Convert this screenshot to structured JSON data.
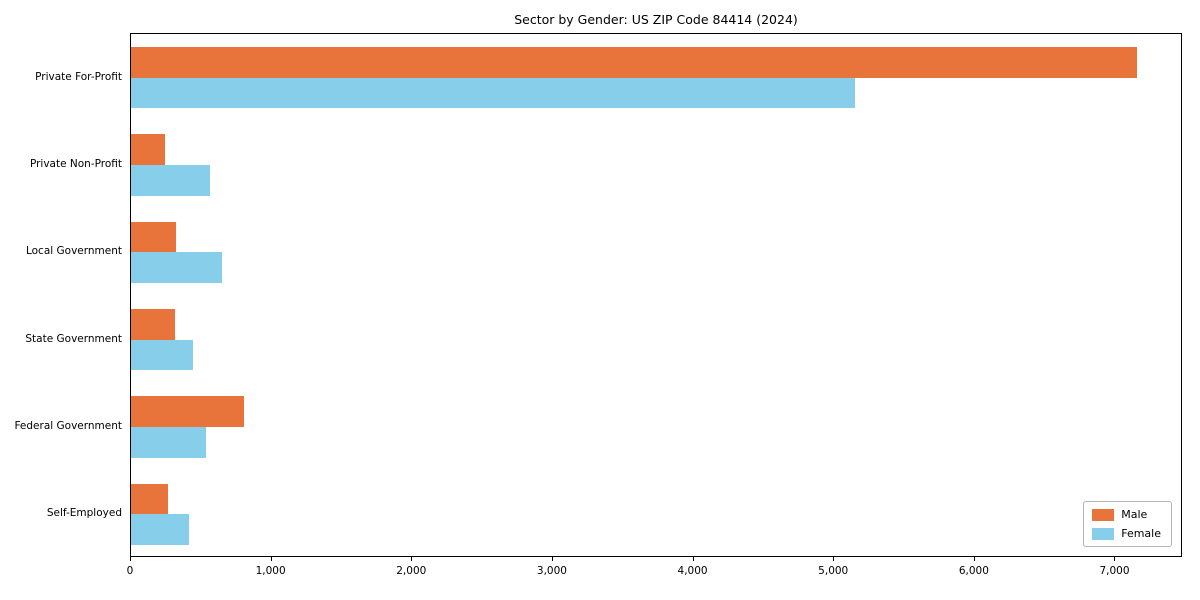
{
  "chart_data": {
    "type": "bar",
    "orientation": "horizontal",
    "title": "Sector by Gender: US ZIP Code 84414 (2024)",
    "categories": [
      "Private For-Profit",
      "Private Non-Profit",
      "Local Government",
      "State Government",
      "Federal Government",
      "Self-Employed"
    ],
    "series": [
      {
        "name": "Male",
        "color": "#e8743b",
        "values": [
          7150,
          240,
          320,
          310,
          800,
          260
        ]
      },
      {
        "name": "Female",
        "color": "#87ceeb",
        "values": [
          5150,
          560,
          650,
          440,
          530,
          410
        ]
      }
    ],
    "xlim": [
      0,
      7480
    ],
    "xticks": [
      0,
      1000,
      2000,
      3000,
      4000,
      5000,
      6000,
      7000
    ],
    "xtick_labels": [
      "0",
      "1,000",
      "2,000",
      "3,000",
      "4,000",
      "5,000",
      "6,000",
      "7,000"
    ],
    "legend_position": "lower right",
    "grid": false,
    "colors": {
      "male": "#e8743b",
      "female": "#87ceeb",
      "axis": "#000000",
      "background": "#ffffff",
      "legend_border": "#b5b5b5"
    }
  }
}
